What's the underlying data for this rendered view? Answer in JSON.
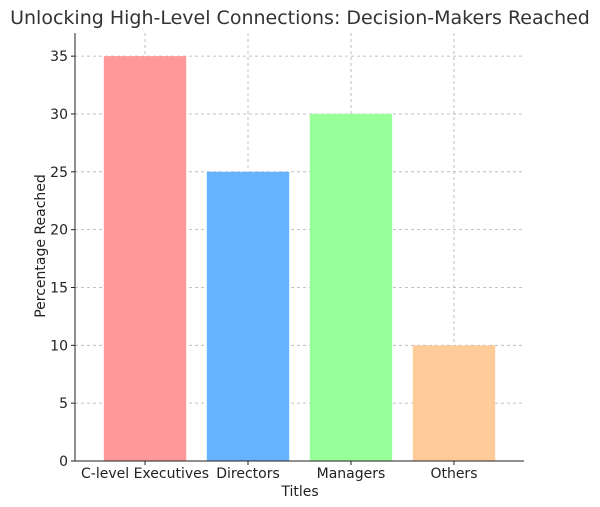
{
  "chart_data": {
    "type": "bar",
    "title": "Unlocking High-Level Connections: Decision-Makers Reached",
    "xlabel": "Titles",
    "ylabel": "Percentage Reached",
    "categories": [
      "C-level Executives",
      "Directors",
      "Managers",
      "Others"
    ],
    "values": [
      35,
      25,
      30,
      10
    ],
    "colors": [
      "#ff9999",
      "#66b3ff",
      "#99ff99",
      "#ffcc99"
    ],
    "ylim": [
      0,
      37
    ],
    "yticks": [
      0,
      5,
      10,
      15,
      20,
      25,
      30,
      35
    ],
    "grid": true
  }
}
